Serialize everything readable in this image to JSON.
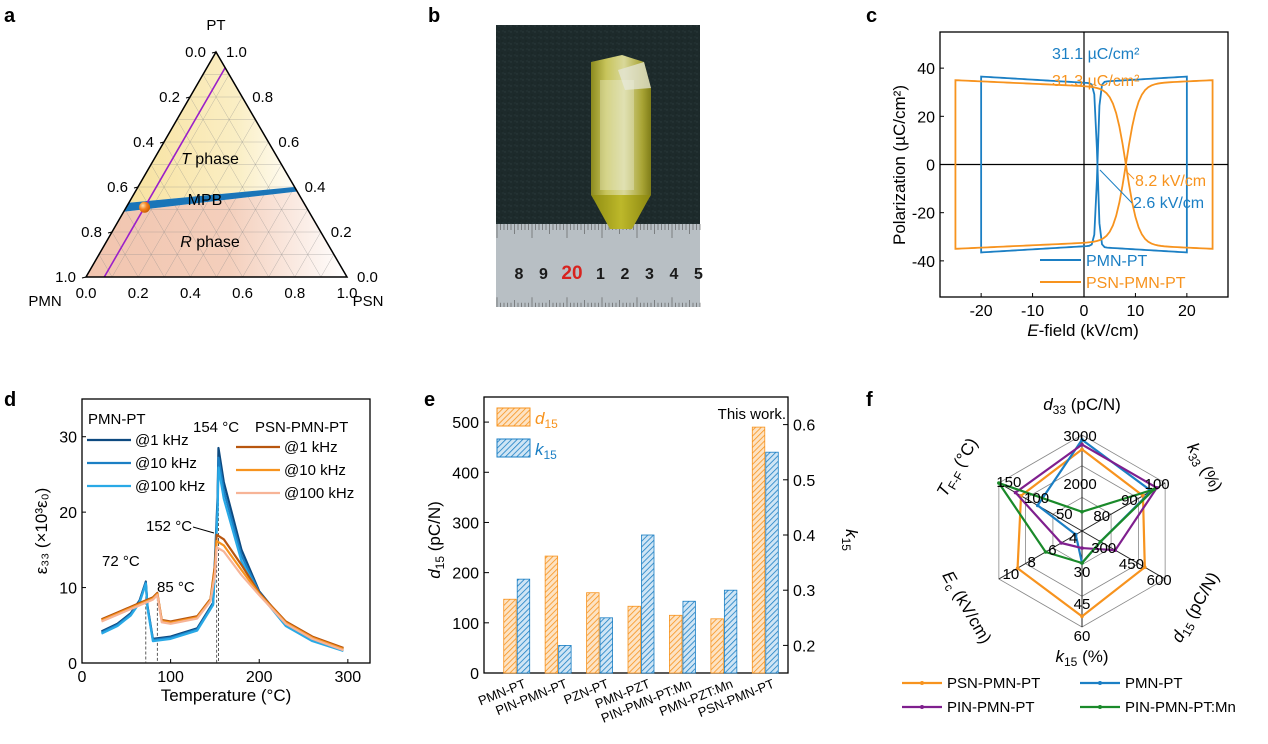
{
  "panels": {
    "a": {
      "label": "a"
    },
    "b": {
      "label": "b"
    },
    "c": {
      "label": "c"
    },
    "d": {
      "label": "d"
    },
    "e": {
      "label": "e"
    },
    "f": {
      "label": "f"
    }
  },
  "chart_data": [
    {
      "panel": "a",
      "type": "ternary",
      "vertices": {
        "top": "PT",
        "left": "PMN",
        "right": "PSN"
      },
      "left_edge_ticks": [
        "0.0",
        "0.2",
        "0.4",
        "0.6",
        "0.8",
        "1.0"
      ],
      "right_edge_ticks": [
        "1.0",
        "0.8",
        "0.6",
        "0.4",
        "0.2",
        "0.0"
      ],
      "bottom_edge_ticks": [
        "0.0",
        "0.2",
        "0.4",
        "0.6",
        "0.8",
        "1.0"
      ],
      "regions": [
        {
          "name": "T phase",
          "italic": "T",
          "rest": " phase",
          "color": "#f8e6a6"
        },
        {
          "name": "MPB",
          "color": "#1a75b8"
        },
        {
          "name": "R phase",
          "italic": "R",
          "rest": " phase",
          "color": "#f2c7b0"
        }
      ],
      "mpb": {
        "left_pt": 0.31,
        "right_pt": 0.39
      },
      "composition_line_color": "#9b1fc9",
      "marker": {
        "pt": 0.31,
        "psn": 0.19,
        "color": "#f58220"
      }
    },
    {
      "panel": "b",
      "type": "image",
      "description": "Photograph of yellow PSN-PMN-PT single crystal on ruler",
      "ruler_numbers": [
        "8",
        "9",
        "20",
        "1",
        "2",
        "3",
        "4",
        "5"
      ],
      "highlight_number": "20"
    },
    {
      "panel": "c",
      "type": "line",
      "xlabel_italic": "E",
      "xlabel_rest": "-field (kV/cm)",
      "ylabel": "Polarization (µC/cm²)",
      "xlim": [
        -28,
        28
      ],
      "ylim": [
        -55,
        55
      ],
      "xticks": [
        -20,
        -10,
        0,
        10,
        20
      ],
      "yticks": [
        -40,
        -20,
        0,
        20,
        40
      ],
      "series": [
        {
          "name": "PMN-PT",
          "color": "#1b7fc4",
          "Pr": 31.1,
          "Ec": 2.6,
          "Emax": 20,
          "Pmax": 36.5
        },
        {
          "name": "PSN-PMN-PT",
          "color": "#f7931e",
          "Pr": 31.3,
          "Ec": 8.2,
          "Emax": 25,
          "Pmax": 35
        }
      ],
      "annotations": [
        {
          "text": "31.1 µC/cm²",
          "color": "#1b7fc4"
        },
        {
          "text": "31.3 µC/cm²",
          "color": "#f7931e"
        },
        {
          "text": "8.2 kV/cm",
          "color": "#f7931e"
        },
        {
          "text": "2.6 kV/cm",
          "color": "#1b7fc4"
        }
      ],
      "legend": "bottom-right"
    },
    {
      "panel": "d",
      "type": "line",
      "xlabel": "Temperature (°C)",
      "ylabel": "ε₃₃ (×10³ε₀)",
      "xlim": [
        0,
        325
      ],
      "ylim": [
        0,
        35
      ],
      "xticks": [
        0,
        100,
        200,
        300
      ],
      "yticks": [
        0,
        10,
        20,
        30
      ],
      "legend_groups": [
        {
          "title": "PMN-PT",
          "items": [
            {
              "name": "@1 kHz",
              "color": "#0d4a80"
            },
            {
              "name": "@10 kHz",
              "color": "#1b7fc4"
            },
            {
              "name": "@100 kHz",
              "color": "#29a9e6"
            }
          ]
        },
        {
          "title": "PSN-PMN-PT",
          "items": [
            {
              "name": "@1 kHz",
              "color": "#b8560f"
            },
            {
              "name": "@10 kHz",
              "color": "#f7931e"
            },
            {
              "name": "@100 kHz",
              "color": "#f7b497"
            }
          ]
        }
      ],
      "series": [
        {
          "name": "PMN-PT",
          "x": [
            22,
            40,
            55,
            65,
            72,
            74,
            80,
            100,
            130,
            148,
            153,
            154,
            160,
            180,
            200,
            230,
            260,
            295
          ],
          "y": [
            4.2,
            5.2,
            6.6,
            8.3,
            10.8,
            7.5,
            3.2,
            3.5,
            4.6,
            8,
            22,
            28.5,
            24,
            15,
            9.5,
            5.2,
            3.2,
            1.9
          ]
        },
        {
          "name": "PSN-PMN-PT",
          "x": [
            22,
            40,
            60,
            80,
            85,
            90,
            100,
            130,
            145,
            150,
            152,
            160,
            180,
            200,
            230,
            260,
            295
          ],
          "y": [
            5.8,
            6.7,
            7.7,
            8.7,
            9.3,
            5.7,
            5.5,
            6.2,
            8.5,
            13,
            17,
            16.4,
            13,
            9.3,
            5.5,
            3.5,
            2.0
          ]
        }
      ],
      "annotations": [
        "72 °C",
        "85 °C",
        "154 °C",
        "152 °C"
      ]
    },
    {
      "panel": "e",
      "type": "bar",
      "categories": [
        "PMN-PT",
        "PIN-PMN-PT",
        "PZN-PT",
        "PMN-PZT",
        "PIN-PMN-PT:Mn",
        "PMN-PZT:Mn",
        "PSN-PMN-PT"
      ],
      "series": [
        {
          "name": "d15",
          "axis": "left",
          "color": "#f7931e",
          "values": [
            147,
            233,
            160,
            133,
            115,
            108,
            490
          ]
        },
        {
          "name": "k15",
          "axis": "right",
          "color": "#1b7fc4",
          "values": [
            0.32,
            0.2,
            0.25,
            0.4,
            0.28,
            0.3,
            0.55
          ]
        }
      ],
      "ylabel_left": "d15 (pC/N)",
      "ylabel_right": "k15",
      "ylim_left": [
        0,
        550
      ],
      "ylim_right": [
        0.15,
        0.65
      ],
      "yticks_left": [
        0,
        100,
        200,
        300,
        400,
        500
      ],
      "yticks_right": [
        0.2,
        0.3,
        0.4,
        0.5,
        0.6
      ],
      "annotation": "This work.",
      "legend": "top-left"
    },
    {
      "panel": "f",
      "type": "radar",
      "axes": [
        {
          "name": "d33 (pC/N)",
          "main": "d",
          "sub": "33",
          "unit": " (pC/N)",
          "ticks": [
            "2000",
            "3000"
          ],
          "min": 1000,
          "max": 3000
        },
        {
          "name": "k33 (%)",
          "main": "k",
          "sub": "33",
          "unit": " (%)",
          "ticks": [
            "80",
            "90",
            "100"
          ],
          "min": 70,
          "max": 100
        },
        {
          "name": "d15 (pC/N)",
          "main": "d",
          "sub": "15",
          "unit": " (pC/N)",
          "ticks": [
            "300",
            "450",
            "600"
          ],
          "min": 150,
          "max": 600
        },
        {
          "name": "k15 (%)",
          "main": "k",
          "sub": "15",
          "unit": " (%)",
          "ticks": [
            "30",
            "45",
            "60"
          ],
          "min": 15,
          "max": 60
        },
        {
          "name": "Ec (kV/cm)",
          "main": "E",
          "sub": "c",
          "unit": " (kV/cm)",
          "ticks": [
            "4",
            "6",
            "8",
            "10"
          ],
          "min": 2,
          "max": 10
        },
        {
          "name": "TF-F (°C)",
          "main": "T",
          "sub": "F-F",
          "unit": " (°C)",
          "ticks": [
            "50",
            "100",
            "150"
          ],
          "min": 0,
          "max": 150
        }
      ],
      "series": [
        {
          "name": "PSN-PMN-PT",
          "color": "#f7931e",
          "values": [
            2700,
            92,
            490,
            55,
            8.2,
            110
          ]
        },
        {
          "name": "PMN-PT",
          "color": "#1b7fc4",
          "values": [
            2900,
            95,
            250,
            30,
            2.6,
            80
          ]
        },
        {
          "name": "PIN-PMN-PT",
          "color": "#7f1f8e",
          "values": [
            2800,
            97,
            330,
            23,
            4,
            120
          ]
        },
        {
          "name": "PIN-PMN-PT:Mn",
          "color": "#1a8a2a",
          "values": [
            1400,
            96,
            250,
            30,
            5.5,
            150
          ]
        }
      ],
      "legend": "bottom"
    }
  ]
}
